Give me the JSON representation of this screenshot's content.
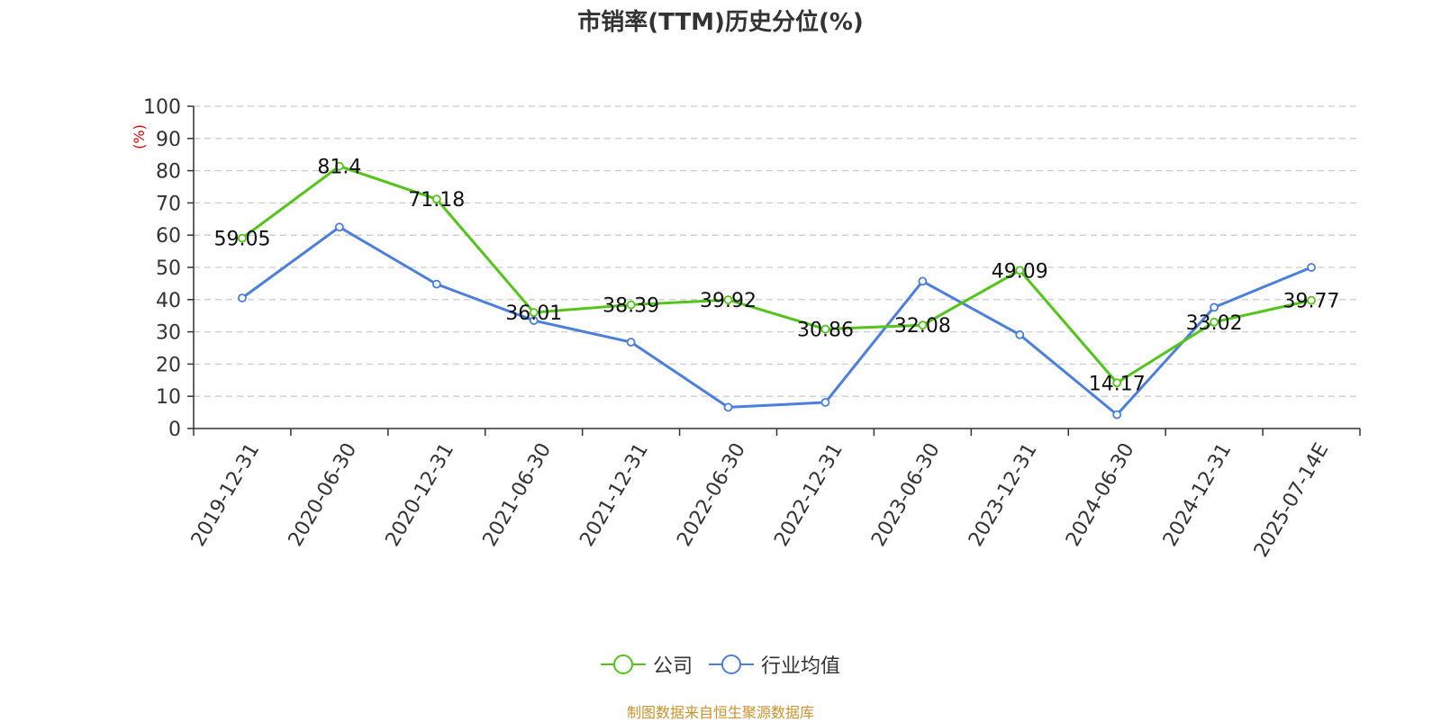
{
  "title": "市销率(TTM)历史分位(%)",
  "source": "制图数据来自恒生聚源数据库",
  "colors": {
    "company": "#52c41a",
    "industry": "#4a7fdb",
    "ylabel": "#e00000",
    "grid": "#cccccc",
    "axis": "#333333"
  },
  "chart_data": {
    "type": "line",
    "title": "市销率(TTM)历史分位(%)",
    "ylabel": "(%)",
    "xlabel": "",
    "ylim": [
      0,
      100
    ],
    "yticks": [
      0,
      10,
      20,
      30,
      40,
      50,
      60,
      70,
      80,
      90,
      100
    ],
    "grid": true,
    "legend_position": "bottom",
    "categories": [
      "2019-12-31",
      "2020-06-30",
      "2020-12-31",
      "2021-06-30",
      "2021-12-31",
      "2022-06-30",
      "2022-12-31",
      "2023-06-30",
      "2023-12-31",
      "2024-06-30",
      "2024-12-31",
      "2025-07-14E"
    ],
    "series": [
      {
        "name": "公司",
        "values": [
          59.05,
          81.4,
          71.18,
          36.01,
          38.39,
          39.92,
          30.86,
          32.08,
          49.09,
          14.17,
          33.02,
          39.77
        ],
        "labels": [
          "59.05",
          "81.4",
          "71.18",
          "36.01",
          "38.39",
          "39.92",
          "30.86",
          "32.08",
          "49.09",
          "14.17",
          "33.02",
          "39.77"
        ]
      },
      {
        "name": "行业均值",
        "values": [
          40.5,
          62.5,
          44.8,
          33.5,
          26.8,
          6.6,
          8.1,
          45.7,
          29.1,
          4.3,
          37.6,
          50.0
        ]
      }
    ]
  }
}
